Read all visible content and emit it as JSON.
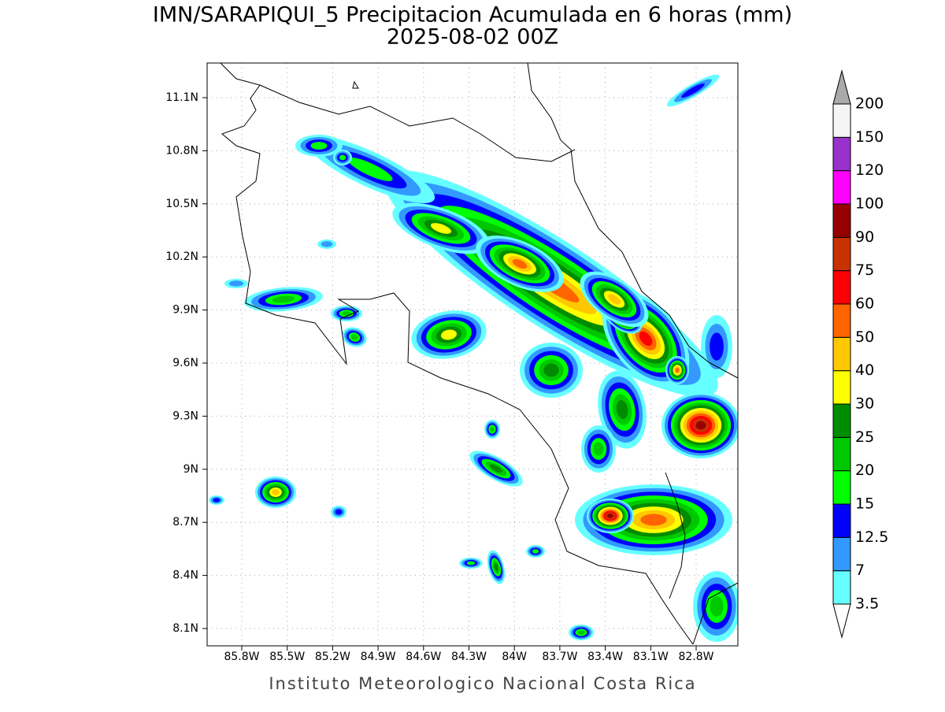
{
  "title": [
    "IMN/SARAPIQUI_5 Precipitacion Acumulada en 6 horas (mm)",
    "2025-08-02 00Z"
  ],
  "footer": "Instituto Meteorologico Nacional Costa Rica",
  "lat_labels": [
    "11.1N",
    "10.8N",
    "10.5N",
    "10.2N",
    "9.9N",
    "9.6N",
    "9.3N",
    "9N",
    "8.7N",
    "8.4N",
    "8.1N"
  ],
  "lon_labels": [
    "85.8W",
    "85.5W",
    "85.2W",
    "84.9W",
    "84.6W",
    "84.3W",
    "84W",
    "83.7W",
    "83.4W",
    "83.1W",
    "82.8W"
  ],
  "colorbar": {
    "levels": [
      3.5,
      7,
      12.5,
      15,
      20,
      25,
      30,
      40,
      50,
      60,
      75,
      90,
      100,
      120,
      150,
      200
    ],
    "colors": [
      "#66ffff",
      "#3399ff",
      "#0000ff",
      "#00ff00",
      "#00c800",
      "#008c00",
      "#ffff00",
      "#ffc800",
      "#ff6400",
      "#ff0000",
      "#c83200",
      "#960000",
      "#ff00ff",
      "#9932cc",
      "#f5f5f5"
    ],
    "over_color": "#aaaaaa",
    "under_color": "#ffffff"
  }
}
